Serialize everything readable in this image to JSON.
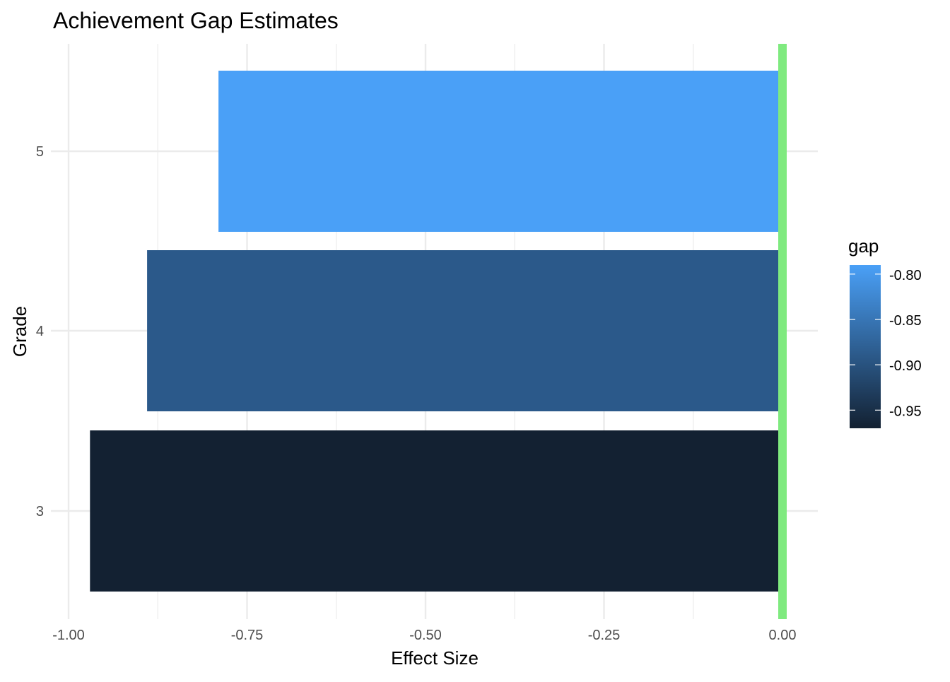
{
  "chart_data": {
    "type": "bar",
    "orientation": "horizontal",
    "title": "Achievement Gap Estimates",
    "xlabel": "Effect Size",
    "ylabel": "Grade",
    "categories": [
      "3",
      "4",
      "5"
    ],
    "values": [
      -0.97,
      -0.89,
      -0.79
    ],
    "xlim": [
      -1.0,
      0.0
    ],
    "x_ticks": [
      -1.0,
      -0.75,
      -0.5,
      -0.25,
      0.0
    ],
    "x_tick_labels": [
      "-1.00",
      "-0.75",
      "-0.50",
      "-0.25",
      "0.00"
    ],
    "reference_line": {
      "x": 0.0,
      "color": "#7FEA7F"
    },
    "grid": true,
    "legend": {
      "title": "gap",
      "position": "right",
      "type": "colorbar",
      "range": [
        -0.97,
        -0.79
      ],
      "ticks": [
        -0.8,
        -0.85,
        -0.9,
        -0.95
      ],
      "tick_labels": [
        "-0.80",
        "-0.85",
        "-0.90",
        "-0.95"
      ],
      "color_low": "#132132",
      "color_high": "#4AA0F7"
    },
    "colors": {
      "bar_high": "#4AA0F7",
      "bar_low": "#132132",
      "grid": "#EBEBEB",
      "text": "#4D4D4D",
      "title": "#000000"
    }
  }
}
